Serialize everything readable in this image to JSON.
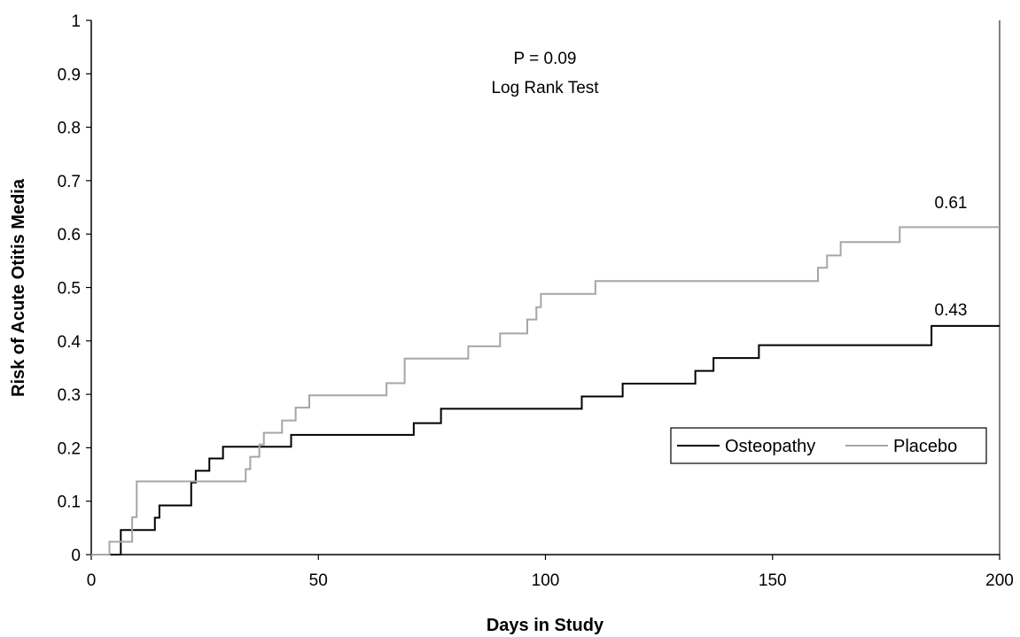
{
  "chart_data": {
    "type": "line",
    "title": "",
    "xlabel": "Days in Study",
    "ylabel": "Risk of Acute Otitis Media",
    "xlim": [
      0,
      200
    ],
    "ylim": [
      0,
      1
    ],
    "x_ticks": [
      "0",
      "50",
      "100",
      "150",
      "200"
    ],
    "y_ticks": [
      "0",
      "0.1",
      "0.2",
      "0.3",
      "0.4",
      "0.5",
      "0.6",
      "0.7",
      "0.8",
      "0.9",
      "1"
    ],
    "grid": false,
    "legend_position": "lower-right",
    "annotations": {
      "stat_line1": "P = 0.09",
      "stat_line2": "Log Rank Test",
      "osteopathy_end": "0.43",
      "placebo_end": "0.61"
    },
    "series": [
      {
        "name": "Osteopathy",
        "color": "#000000",
        "step": true,
        "points": [
          [
            0,
            0
          ],
          [
            6.5,
            0
          ],
          [
            6.5,
            0.046
          ],
          [
            14,
            0.046
          ],
          [
            14,
            0.069
          ],
          [
            15,
            0.069
          ],
          [
            15,
            0.092
          ],
          [
            22,
            0.092
          ],
          [
            22,
            0.135
          ],
          [
            23,
            0.135
          ],
          [
            23,
            0.157
          ],
          [
            26,
            0.157
          ],
          [
            26,
            0.18
          ],
          [
            29,
            0.18
          ],
          [
            29,
            0.202
          ],
          [
            44,
            0.202
          ],
          [
            44,
            0.224
          ],
          [
            71,
            0.224
          ],
          [
            71,
            0.246
          ],
          [
            77,
            0.246
          ],
          [
            77,
            0.273
          ],
          [
            108,
            0.273
          ],
          [
            108,
            0.296
          ],
          [
            117,
            0.296
          ],
          [
            117,
            0.32
          ],
          [
            133,
            0.32
          ],
          [
            133,
            0.344
          ],
          [
            137,
            0.344
          ],
          [
            137,
            0.368
          ],
          [
            147,
            0.368
          ],
          [
            147,
            0.392
          ],
          [
            185,
            0.392
          ],
          [
            185,
            0.428
          ],
          [
            200,
            0.428
          ]
        ]
      },
      {
        "name": "Placebo",
        "color": "#a6a6a6",
        "step": true,
        "points": [
          [
            0,
            0
          ],
          [
            4,
            0
          ],
          [
            4,
            0.024
          ],
          [
            9,
            0.024
          ],
          [
            9,
            0.07
          ],
          [
            10,
            0.07
          ],
          [
            10,
            0.137
          ],
          [
            34,
            0.137
          ],
          [
            34,
            0.16
          ],
          [
            35,
            0.16
          ],
          [
            35,
            0.183
          ],
          [
            37,
            0.183
          ],
          [
            37,
            0.206
          ],
          [
            38,
            0.206
          ],
          [
            38,
            0.228
          ],
          [
            42,
            0.228
          ],
          [
            42,
            0.251
          ],
          [
            45,
            0.251
          ],
          [
            45,
            0.275
          ],
          [
            48,
            0.275
          ],
          [
            48,
            0.298
          ],
          [
            65,
            0.298
          ],
          [
            65,
            0.321
          ],
          [
            69,
            0.321
          ],
          [
            69,
            0.367
          ],
          [
            83,
            0.367
          ],
          [
            83,
            0.39
          ],
          [
            90,
            0.39
          ],
          [
            90,
            0.414
          ],
          [
            96,
            0.414
          ],
          [
            96,
            0.44
          ],
          [
            98,
            0.44
          ],
          [
            98,
            0.463
          ],
          [
            99,
            0.463
          ],
          [
            99,
            0.488
          ],
          [
            111,
            0.488
          ],
          [
            111,
            0.512
          ],
          [
            160,
            0.512
          ],
          [
            160,
            0.537
          ],
          [
            162,
            0.537
          ],
          [
            162,
            0.56
          ],
          [
            165,
            0.56
          ],
          [
            165,
            0.585
          ],
          [
            178,
            0.585
          ],
          [
            178,
            0.613
          ],
          [
            200,
            0.613
          ]
        ]
      }
    ]
  }
}
